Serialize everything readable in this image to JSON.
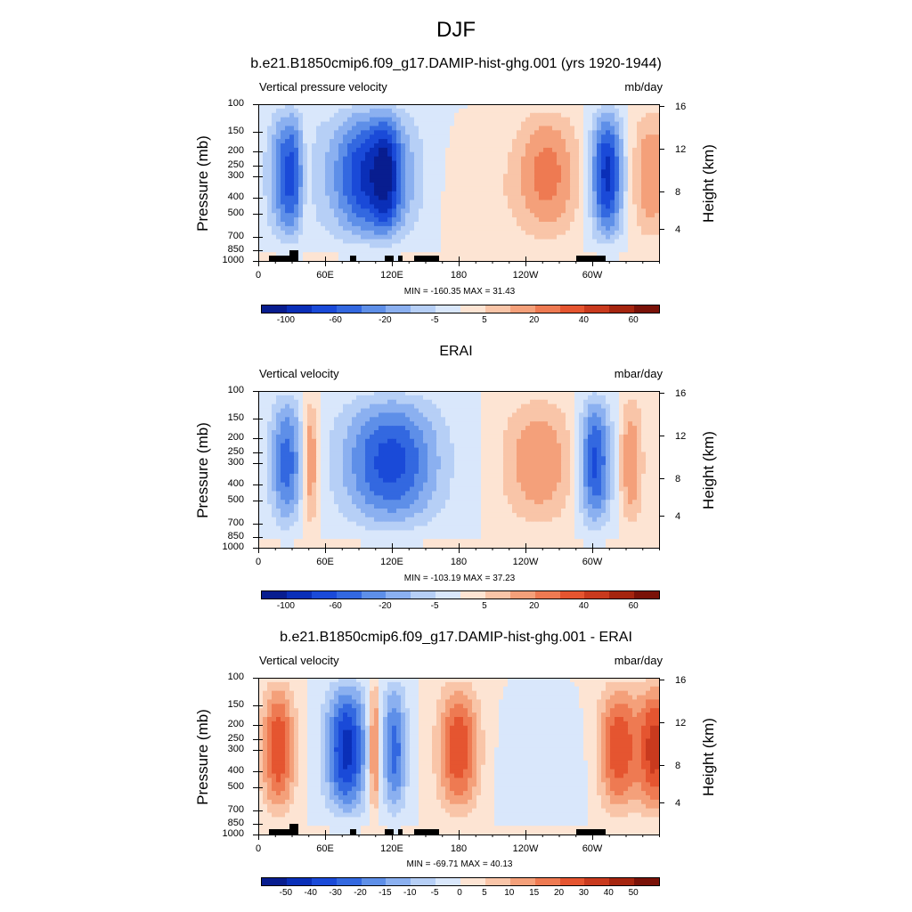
{
  "main_title": "DJF",
  "palette": [
    "#081d8f",
    "#0a2fb8",
    "#1a4ad8",
    "#3368e0",
    "#5e8fe8",
    "#8bb0f0",
    "#b6cff6",
    "#d9e7fb",
    "#fde4d3",
    "#f9c5a8",
    "#f4a07a",
    "#ee7a52",
    "#e55530",
    "#c93a1e",
    "#a5250f",
    "#7a1208"
  ],
  "chart_data": [
    {
      "type": "heatmap",
      "title": "b.e21.B1850cmip6.f09_g17.DAMIP-hist-ghg.001 (yrs 1920-1944)",
      "left_subtitle": "Vertical pressure velocity",
      "right_subtitle": "mb/day",
      "ylabel": "Pressure (mb)",
      "ylabel_right": "Height (km)",
      "yticks": [
        "100",
        "150",
        "200",
        "250",
        "300",
        "400",
        "500",
        "700",
        "850",
        "1000"
      ],
      "yticks_right": [
        "16",
        "12",
        "8",
        "4"
      ],
      "xticks": [
        "0",
        "60E",
        "120E",
        "180",
        "120W",
        "60W"
      ],
      "min_max": "MIN = -160.35  MAX =  31.43",
      "colorbar_labels": [
        "-100",
        "-60",
        "-20",
        "-5",
        "5",
        "20",
        "40",
        "60"
      ]
    },
    {
      "type": "heatmap",
      "title": "ERAI",
      "left_subtitle": "Vertical velocity",
      "right_subtitle": "mbar/day",
      "ylabel": "Pressure (mb)",
      "ylabel_right": "Height (km)",
      "yticks": [
        "100",
        "150",
        "200",
        "250",
        "300",
        "400",
        "500",
        "700",
        "850",
        "1000"
      ],
      "yticks_right": [
        "16",
        "12",
        "8",
        "4"
      ],
      "xticks": [
        "0",
        "60E",
        "120E",
        "180",
        "120W",
        "60W"
      ],
      "min_max": "MIN = -103.19  MAX =  37.23",
      "colorbar_labels": [
        "-100",
        "-60",
        "-20",
        "-5",
        "5",
        "20",
        "40",
        "60"
      ]
    },
    {
      "type": "heatmap",
      "title": "b.e21.B1850cmip6.f09_g17.DAMIP-hist-ghg.001 - ERAI",
      "left_subtitle": "Vertical velocity",
      "right_subtitle": "mbar/day",
      "ylabel": "Pressure (mb)",
      "ylabel_right": "Height (km)",
      "yticks": [
        "100",
        "150",
        "200",
        "250",
        "300",
        "400",
        "500",
        "700",
        "850",
        "1000"
      ],
      "yticks_right": [
        "16",
        "12",
        "8",
        "4"
      ],
      "xticks": [
        "0",
        "60E",
        "120E",
        "180",
        "120W",
        "60W"
      ],
      "min_max": "MIN = -69.71  MAX =  40.13",
      "colorbar_labels": [
        "-50",
        "-40",
        "-30",
        "-20",
        "-15",
        "-10",
        "-5",
        "0",
        "5",
        "10",
        "15",
        "20",
        "30",
        "40",
        "50"
      ]
    }
  ]
}
